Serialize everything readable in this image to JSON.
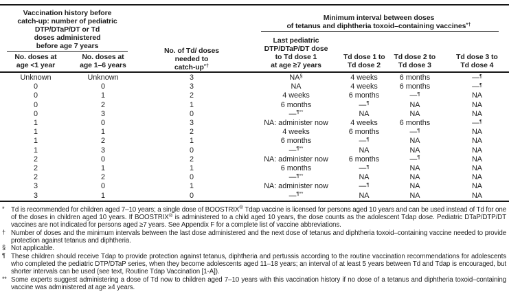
{
  "table": {
    "left_group": {
      "title_lines": [
        "Vaccination history before",
        "catch-up: number of pediatric",
        "DTP/DTaP/DT or Td",
        "doses administered",
        "before age 7 years"
      ]
    },
    "right_group": {
      "title_lines": [
        "Minimum interval between doses",
        "of tetanus and diphtheria toxoid–containing vaccines|*†"
      ]
    },
    "columns": {
      "doses_under_1": {
        "lines": [
          "No. doses at",
          "age <1 year"
        ]
      },
      "doses_1_6": {
        "lines": [
          "No. doses at",
          "age 1–6 years"
        ]
      },
      "td_doses_needed": {
        "lines": [
          "No. of Td/ doses",
          "needed to",
          "catch-up|*†"
        ]
      },
      "last_dose_to_td1": {
        "lines": [
          "Last pediatric",
          "DTP/DTaP/DT dose",
          "to Td dose 1",
          "at age ≥7 years"
        ]
      },
      "td1_td2": {
        "lines": [
          "Td dose 1 to",
          "Td dose 2"
        ]
      },
      "td2_td3": {
        "lines": [
          "Td dose 2 to",
          "Td dose 3"
        ]
      },
      "td3_td4": {
        "lines": [
          "Td dose 3 to",
          "Td dose 4"
        ]
      }
    },
    "rows": [
      [
        "Unknown",
        "Unknown",
        "3",
        "NA|§",
        "4 weeks",
        "6 months",
        "—|¶"
      ],
      [
        "0",
        "0",
        "3",
        "NA",
        "4 weeks",
        "6 months",
        "—|¶"
      ],
      [
        "0",
        "1",
        "2",
        "4 weeks",
        "6 months",
        "—|¶",
        "NA"
      ],
      [
        "0",
        "2",
        "1",
        "6 months",
        "—|¶",
        "NA",
        "NA"
      ],
      [
        "0",
        "3",
        "0",
        "—|¶**",
        "NA",
        "NA",
        "NA"
      ],
      [
        "1",
        "0",
        "3",
        "NA: administer now",
        "4 weeks",
        "6 months",
        "—|¶"
      ],
      [
        "1",
        "1",
        "2",
        "4 weeks",
        "6 months",
        "—|¶",
        "NA"
      ],
      [
        "1",
        "2",
        "1",
        "6 months",
        "—|¶",
        "NA",
        "NA"
      ],
      [
        "1",
        "3",
        "0",
        "—|¶**",
        "NA",
        "NA",
        "NA"
      ],
      [
        "2",
        "0",
        "2",
        "NA: administer now",
        "6 months",
        "—|¶",
        "NA"
      ],
      [
        "2",
        "1",
        "1",
        "6 months",
        "—|¶",
        "NA",
        "NA"
      ],
      [
        "2",
        "2",
        "0",
        "—|¶**",
        "NA",
        "NA",
        "NA"
      ],
      [
        "3",
        "0",
        "1",
        "NA: administer now",
        "—|¶",
        "NA",
        "NA"
      ],
      [
        "3",
        "1",
        "0",
        "—|¶**",
        "NA",
        "NA",
        "NA"
      ]
    ]
  },
  "footnotes": [
    {
      "marker": "*",
      "text": "Td is recommended for children aged 7–10 years; a single dose of BOOSTRIX® Tdap vaccine is licensed for persons aged 10 years and can be used instead of Td for one of the doses in children aged 10 years. If BOOSTRIX® is administered to a child aged 10 years, the dose counts as the adolescent Tdap dose. Pediatric DTaP/DTP/DT vaccines are not indicated for persons aged ≥7 years. See Appendix F for a complete list of vaccine abbreviations."
    },
    {
      "marker": "†",
      "text": "Number of doses and the minimum intervals between the last dose administered and the next dose of tetanus and diphtheria toxoid–containing vaccine needed to provide protection against tetanus and diphtheria."
    },
    {
      "marker": "§",
      "text": "Not applicable."
    },
    {
      "marker": "¶",
      "text": "These children should receive Tdap to provide protection against tetanus, diphtheria and pertussis according to the routine vaccination recommendations for adolescents who completed the pediatric DTP/DTaP series, when they become adolescents aged 11–18 years; an interval of at least 5 years between Td and Tdap is encouraged, but shorter intervals can be used (see text, Routine Tdap Vaccination [1-A])."
    },
    {
      "marker": "**",
      "text": "Some experts suggest administering a dose of Td now to children aged 7–10 years with this vaccination history if no dose of a tetanus and diphtheria toxoid–containing vaccine was administered at age ≥4 years."
    }
  ],
  "colors": {
    "background": "#ffffff",
    "text": "#1e1e1e",
    "rule": "#161616"
  }
}
